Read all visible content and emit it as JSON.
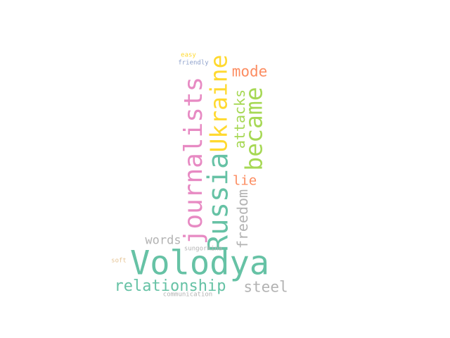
{
  "words": [
    {
      "key": "volodya",
      "text": "Volodya",
      "color": "#66c2a5"
    },
    {
      "key": "journalists",
      "text": "journalists",
      "color": "#e78ac3"
    },
    {
      "key": "russia",
      "text": "Russia",
      "color": "#66c2a5"
    },
    {
      "key": "ukraine",
      "text": "Ukraine",
      "color": "#ffd92f"
    },
    {
      "key": "became",
      "text": "became",
      "color": "#a6d854"
    },
    {
      "key": "relationship",
      "text": "relationship",
      "color": "#66c2a5"
    },
    {
      "key": "steel",
      "text": "steel",
      "color": "#b3b3b3"
    },
    {
      "key": "mode",
      "text": "mode",
      "color": "#fc8d62"
    },
    {
      "key": "attacks",
      "text": "attacks",
      "color": "#a6d854"
    },
    {
      "key": "freedom",
      "text": "freedom",
      "color": "#b3b3b3"
    },
    {
      "key": "lie",
      "text": "lie",
      "color": "#fc8d62"
    },
    {
      "key": "words",
      "text": "words",
      "color": "#b3b3b3"
    },
    {
      "key": "sungorkina",
      "text": "sungorkina",
      "color": "#b3b3b3"
    },
    {
      "key": "soft",
      "text": "soft",
      "color": "#e5c494"
    },
    {
      "key": "easy",
      "text": "easy",
      "color": "#ffd92f"
    },
    {
      "key": "friendly",
      "text": "friendly",
      "color": "#8da0cb"
    },
    {
      "key": "communication",
      "text": "communication",
      "color": "#b3b3b3"
    }
  ]
}
